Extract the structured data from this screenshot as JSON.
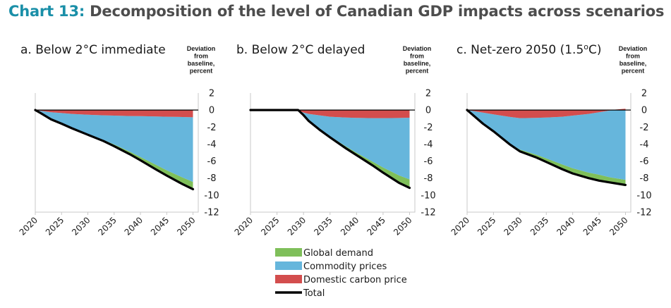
{
  "title": {
    "number": "Chart 13:",
    "text": " Decomposition of the level of Canadian GDP impacts across scenarios"
  },
  "unit_label": [
    "Deviation",
    "from",
    "baseline,",
    "percent"
  ],
  "colors": {
    "global_demand": "#7fbf5a",
    "commodity_prices": "#66b6dc",
    "domestic_carbon_price": "#d34d4d",
    "total": "#000000"
  },
  "legend": [
    {
      "key": "global_demand",
      "label": "Global demand",
      "kind": "box"
    },
    {
      "key": "commodity_prices",
      "label": "Commodity prices",
      "kind": "box"
    },
    {
      "key": "domestic_carbon_price",
      "label": "Domestic carbon price",
      "kind": "box"
    },
    {
      "key": "total",
      "label": "Total",
      "kind": "line"
    }
  ],
  "chart_data": [
    {
      "type": "area",
      "title": "a. Below 2°C immediate",
      "ylabel": "Deviation from baseline, percent",
      "y_ticks": [
        2,
        0,
        -2,
        -4,
        -6,
        -8,
        -10,
        -12
      ],
      "x_ticks": [
        2020,
        2025,
        2030,
        2035,
        2040,
        2045,
        2050
      ],
      "ylim": [
        -12,
        2
      ],
      "xlim": [
        2020,
        2051
      ],
      "x": [
        2020,
        2021,
        2023,
        2025,
        2027,
        2030,
        2033,
        2035,
        2038,
        2040,
        2043,
        2045,
        2048,
        2050
      ],
      "series": [
        {
          "name": "Domestic carbon price",
          "values": [
            0,
            -0.1,
            -0.25,
            -0.35,
            -0.45,
            -0.55,
            -0.62,
            -0.65,
            -0.7,
            -0.72,
            -0.75,
            -0.78,
            -0.82,
            -0.85
          ]
        },
        {
          "name": "Commodity prices",
          "values": [
            0,
            -0.25,
            -0.85,
            -1.2,
            -1.65,
            -2.3,
            -2.9,
            -3.4,
            -4.2,
            -4.8,
            -5.7,
            -6.3,
            -7.1,
            -7.6
          ]
        },
        {
          "name": "Global demand",
          "values": [
            0,
            0,
            -0.02,
            -0.03,
            -0.05,
            -0.08,
            -0.15,
            -0.2,
            -0.3,
            -0.38,
            -0.55,
            -0.65,
            -0.8,
            -0.85
          ]
        },
        {
          "name": "Total",
          "values": [
            0,
            -0.35,
            -1.1,
            -1.6,
            -2.15,
            -2.9,
            -3.65,
            -4.25,
            -5.2,
            -5.9,
            -7.0,
            -7.7,
            -8.7,
            -9.3
          ]
        }
      ]
    },
    {
      "type": "area",
      "title": "b. Below 2°C delayed",
      "ylabel": "Deviation from baseline, percent",
      "y_ticks": [
        2,
        0,
        -2,
        -4,
        -6,
        -8,
        -10,
        -12
      ],
      "x_ticks": [
        2020,
        2025,
        2030,
        2035,
        2040,
        2045,
        2050
      ],
      "ylim": [
        -12,
        2
      ],
      "xlim": [
        2020,
        2051
      ],
      "x": [
        2020,
        2025,
        2029,
        2030,
        2031,
        2033,
        2035,
        2038,
        2040,
        2043,
        2045,
        2048,
        2050
      ],
      "series": [
        {
          "name": "Domestic carbon price",
          "values": [
            0,
            0,
            0,
            -0.3,
            -0.45,
            -0.62,
            -0.78,
            -0.88,
            -0.92,
            -0.95,
            -0.95,
            -0.93,
            -0.9
          ]
        },
        {
          "name": "Commodity prices",
          "values": [
            0,
            0,
            0,
            -0.3,
            -0.8,
            -1.6,
            -2.3,
            -3.4,
            -4.1,
            -5.1,
            -5.8,
            -6.75,
            -7.25
          ]
        },
        {
          "name": "Global demand",
          "values": [
            0,
            0,
            0,
            0,
            -0.02,
            -0.05,
            -0.1,
            -0.2,
            -0.3,
            -0.45,
            -0.6,
            -0.85,
            -1.0
          ]
        },
        {
          "name": "Total",
          "values": [
            0,
            0,
            0,
            -0.6,
            -1.3,
            -2.3,
            -3.2,
            -4.5,
            -5.3,
            -6.5,
            -7.35,
            -8.55,
            -9.15
          ]
        }
      ]
    },
    {
      "type": "area",
      "title": "c. Net-zero 2050 (1.5oC)",
      "title_parts": {
        "pre": "c. Net-zero 2050 (1.5",
        "sup": "o",
        "post": "C)"
      },
      "ylabel": "Deviation from baseline, percent",
      "y_ticks": [
        2,
        0,
        -2,
        -4,
        -6,
        -8,
        -10,
        -12
      ],
      "x_ticks": [
        2020,
        2025,
        2030,
        2035,
        2040,
        2045,
        2050
      ],
      "ylim": [
        -12,
        2
      ],
      "xlim": [
        2020,
        2051
      ],
      "x": [
        2020,
        2023,
        2025,
        2028,
        2030,
        2033,
        2035,
        2038,
        2040,
        2043,
        2045,
        2047,
        2048,
        2050
      ],
      "series": [
        {
          "name": "Domestic carbon price",
          "values": [
            0,
            -0.3,
            -0.5,
            -0.8,
            -0.95,
            -0.92,
            -0.88,
            -0.78,
            -0.65,
            -0.45,
            -0.25,
            -0.05,
            0.05,
            0.15
          ]
        },
        {
          "name": "Commodity prices",
          "values": [
            0,
            -1.3,
            -2.0,
            -3.1,
            -3.7,
            -4.3,
            -4.8,
            -5.6,
            -6.2,
            -6.9,
            -7.35,
            -7.85,
            -8.0,
            -8.2
          ]
        },
        {
          "name": "Global demand",
          "values": [
            0,
            0,
            -0.02,
            -0.1,
            -0.2,
            -0.35,
            -0.45,
            -0.55,
            -0.6,
            -0.65,
            -0.68,
            -0.7,
            -0.72,
            -0.75
          ]
        },
        {
          "name": "Total",
          "values": [
            0,
            -1.6,
            -2.5,
            -4.0,
            -4.85,
            -5.55,
            -6.1,
            -6.95,
            -7.45,
            -8.0,
            -8.3,
            -8.5,
            -8.6,
            -8.8
          ]
        }
      ]
    }
  ]
}
